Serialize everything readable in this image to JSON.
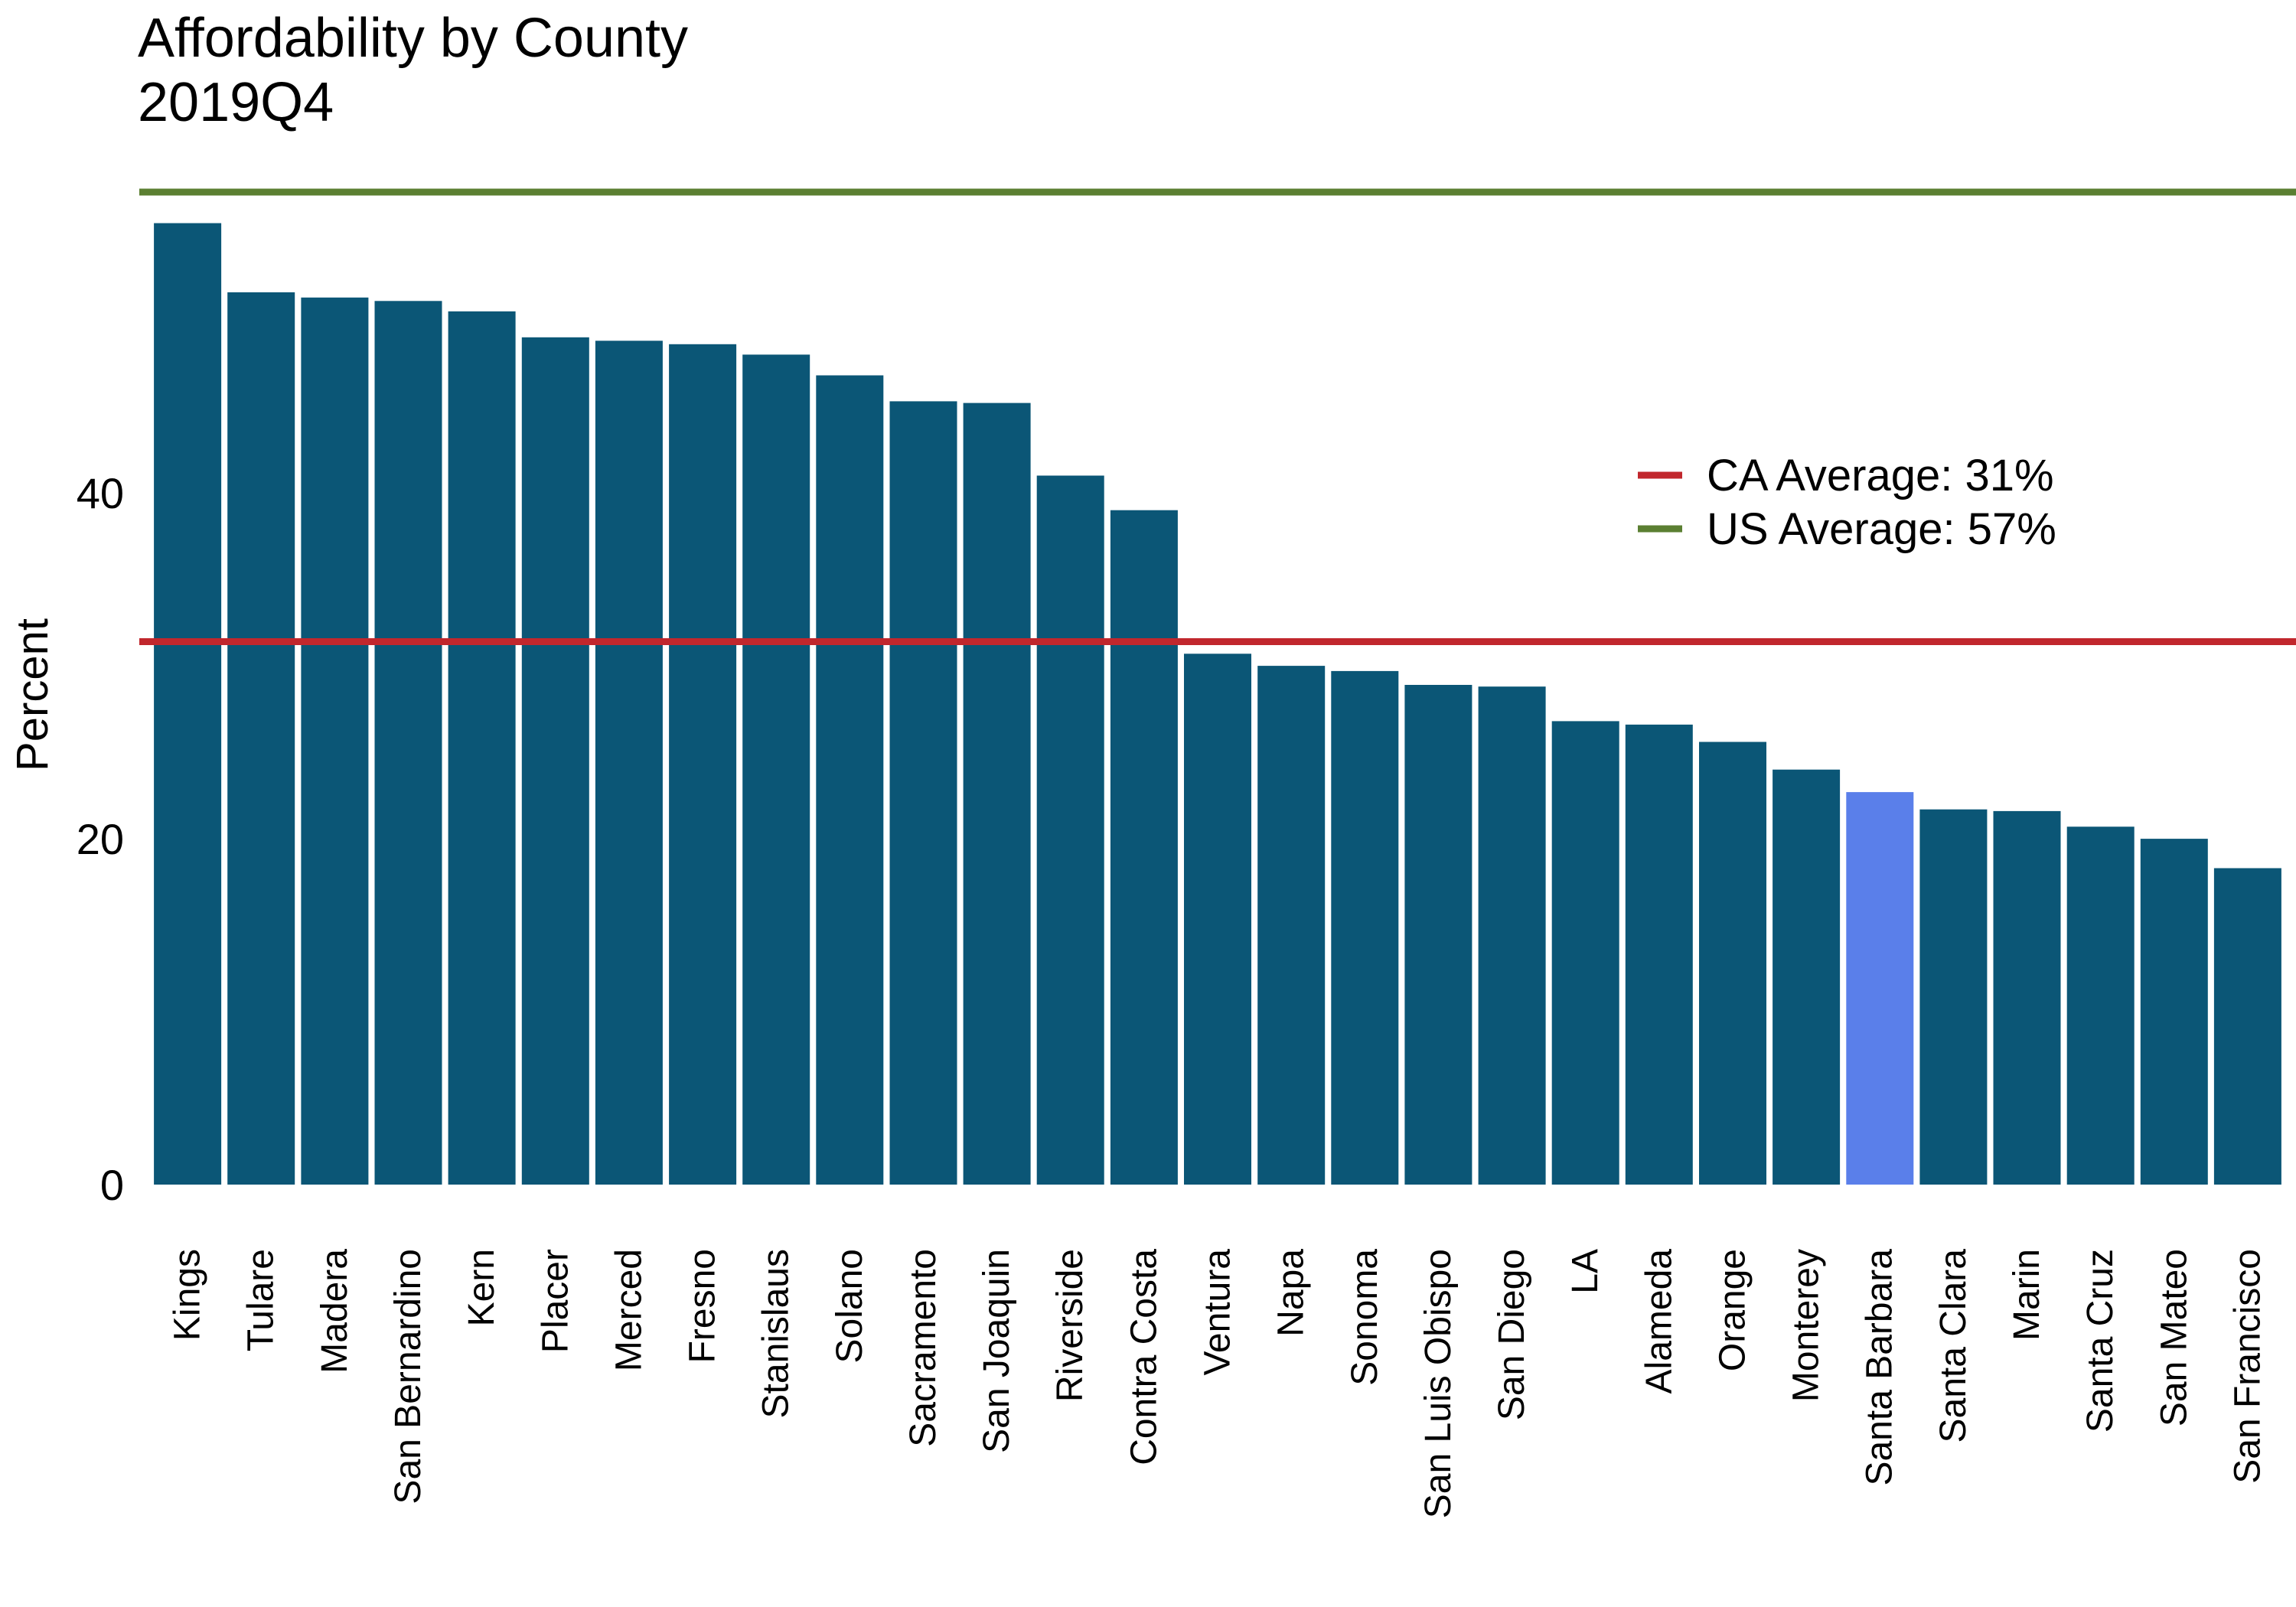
{
  "chart_data": {
    "type": "bar",
    "title": "Affordability by County",
    "subtitle": "2019Q4",
    "xlabel": "",
    "ylabel": "Percent",
    "ylim": [
      0,
      57
    ],
    "yticks": [
      0,
      20,
      40
    ],
    "grid": false,
    "legend_position": "right",
    "categories": [
      "Kings",
      "Tulare",
      "Madera",
      "San Bernardino",
      "Kern",
      "Placer",
      "Merced",
      "Fresno",
      "Stanislaus",
      "Solano",
      "Sacramento",
      "San Joaquin",
      "Riverside",
      "Contra Costa",
      "Ventura",
      "Napa",
      "Sonoma",
      "San Luis Obispo",
      "San Diego",
      "LA",
      "Alameda",
      "Orange",
      "Monterey",
      "Santa Barbara",
      "Santa Clara",
      "Marin",
      "Santa Cruz",
      "San Mateo",
      "San Francisco"
    ],
    "values": [
      55.6,
      51.6,
      51.3,
      51.1,
      50.5,
      49.0,
      48.8,
      48.6,
      48.0,
      46.8,
      45.3,
      45.2,
      41.0,
      39.0,
      30.7,
      30.0,
      29.7,
      28.9,
      28.8,
      26.8,
      26.6,
      25.6,
      24.0,
      22.7,
      21.7,
      21.6,
      20.7,
      20.0,
      18.3
    ],
    "highlight": "Santa Barbara",
    "reference_lines": [
      {
        "label": "CA Average: 31%",
        "value": 31.4,
        "color": "#c1272d"
      },
      {
        "label": "US Average: 57%",
        "value": 57.4,
        "color": "#5b7f32"
      }
    ],
    "colors": {
      "bar": "#0b5676",
      "highlight": "#5a7fea"
    }
  }
}
